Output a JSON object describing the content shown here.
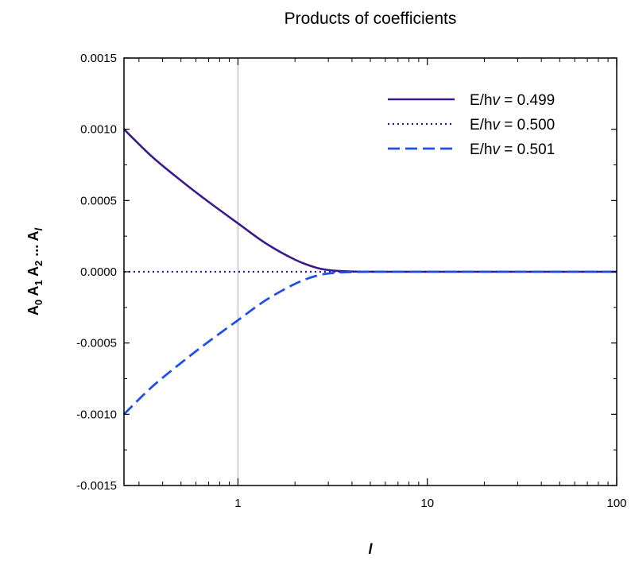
{
  "chart_data": {
    "type": "line",
    "title": "Products of coefficients",
    "xlabel": "l",
    "ylabel": "A0 A1 A2 ... Al",
    "x_scale": "log",
    "xlim": [
      0.25,
      100
    ],
    "ylim": [
      -0.0015,
      0.0015
    ],
    "x_ticks": [
      {
        "value": 1,
        "label": "1"
      },
      {
        "value": 10,
        "label": "10"
      },
      {
        "value": 100,
        "label": "100"
      }
    ],
    "y_ticks": [
      {
        "value": 0.0015,
        "label": "0.0015"
      },
      {
        "value": 0.001,
        "label": "0.0010"
      },
      {
        "value": 0.0005,
        "label": "0.0005"
      },
      {
        "value": 0.0,
        "label": "0.0000"
      },
      {
        "value": -0.0005,
        "label": "-0.0005"
      },
      {
        "value": -0.001,
        "label": "-0.0010"
      },
      {
        "value": -0.0015,
        "label": "-0.0015"
      }
    ],
    "vertical_reference_line": {
      "x": 1
    },
    "legend_placement": "top-right",
    "series": [
      {
        "name": "E/hv = 0.499",
        "legend_prefix": "E/h",
        "legend_symbol": "v",
        "legend_suffix": " = 0.499",
        "color": "#3b1a8c",
        "style": "solid",
        "x": [
          0.25,
          0.35,
          0.5,
          0.7,
          1.0,
          1.4,
          2.0,
          2.6,
          3.2,
          4.0,
          5.0,
          7.0,
          10,
          30,
          100
        ],
        "y": [
          0.001,
          0.00081,
          0.00064,
          0.00049,
          0.00034,
          0.0002,
          8.5e-05,
          2.8e-05,
          8e-06,
          2e-06,
          5e-07,
          0.0,
          0.0,
          0.0,
          0.0
        ]
      },
      {
        "name": "E/hv = 0.500",
        "legend_prefix": "E/h",
        "legend_symbol": "v",
        "legend_suffix": " = 0.500",
        "color": "#1a1aa8",
        "style": "dotted",
        "x": [
          0.25,
          100
        ],
        "y": [
          0.0,
          0.0
        ]
      },
      {
        "name": "E/hv = 0.501",
        "legend_prefix": "E/h",
        "legend_symbol": "v",
        "legend_suffix": " = 0.501",
        "color": "#1f4fe6",
        "style": "dashed",
        "x": [
          0.25,
          0.35,
          0.5,
          0.7,
          1.0,
          1.4,
          2.0,
          2.6,
          3.2,
          4.0,
          5.0,
          7.0,
          10,
          30,
          100
        ],
        "y": [
          -0.001,
          -0.00081,
          -0.00064,
          -0.00049,
          -0.00034,
          -0.0002,
          -8.5e-05,
          -2.8e-05,
          -8e-06,
          -2e-06,
          -5e-07,
          0.0,
          0.0,
          0.0,
          0.0
        ]
      }
    ]
  }
}
